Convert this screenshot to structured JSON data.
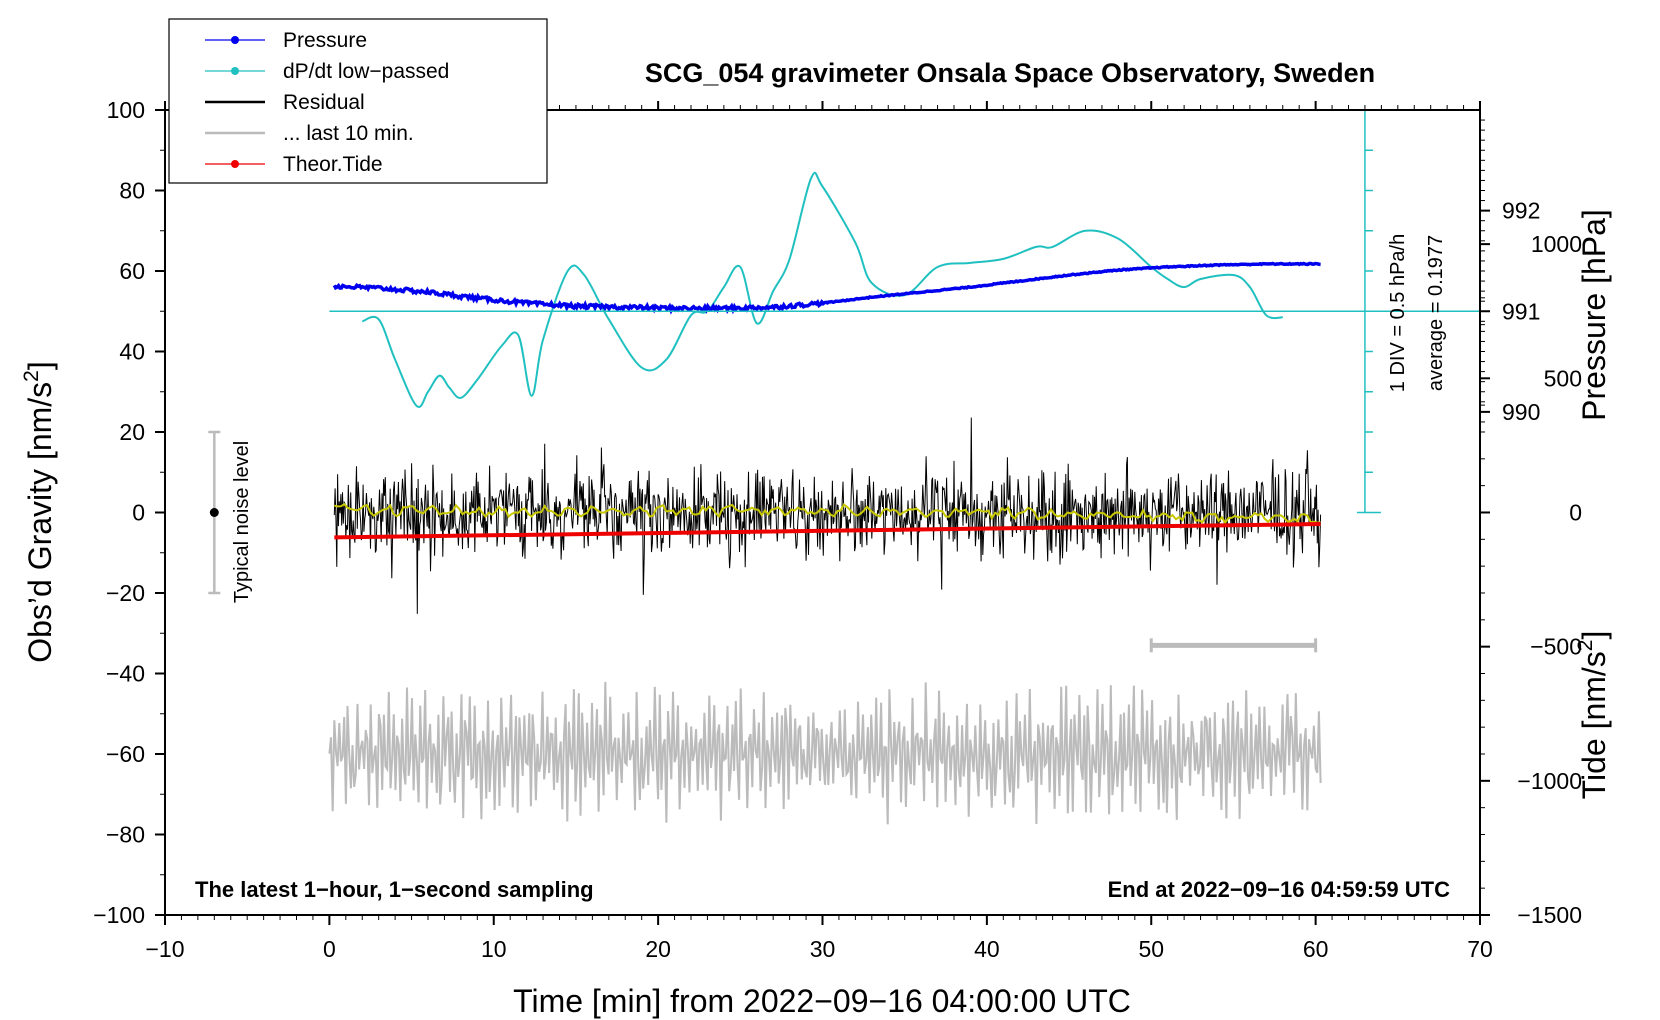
{
  "chart_data": {
    "type": "line",
    "title": "SCG_054 gravimeter Onsala Space Observatory, Sweden",
    "xlabel": "Time [min] from 2022−09−16 04:00:00 UTC",
    "ylabel_left_main": "Obs’d Gravity [nm/s",
    "ylabel_left_sup": "2",
    "ylabel_left_close": "]",
    "ylabel_right_pressure": "Pressure [hPa]",
    "ylabel_right_tide_main": "Tide [nm/s",
    "ylabel_right_tide_sup": "2",
    "ylabel_right_tide_close": "]",
    "xlim": [
      -10,
      70
    ],
    "ylim": [
      -100,
      100
    ],
    "x_ticks": [
      "−10",
      "0",
      "10",
      "20",
      "30",
      "40",
      "50",
      "60",
      "70"
    ],
    "x_tick_values": [
      -10,
      0,
      10,
      20,
      30,
      40,
      50,
      60,
      70
    ],
    "y_ticks": [
      "100",
      "80",
      "60",
      "40",
      "20",
      "0",
      "−20",
      "−40",
      "−60",
      "−80",
      "−100"
    ],
    "y_tick_values": [
      100,
      80,
      60,
      40,
      20,
      0,
      -20,
      -40,
      -60,
      -80,
      -100
    ],
    "pressure_axis": {
      "ticks": [
        "992",
        "991",
        "990"
      ],
      "tick_values": [
        992,
        991,
        990
      ],
      "ref_value": 991,
      "ref_gravity": 50,
      "gravity_per_hpa": 25
    },
    "tide_axis": {
      "ticks": [
        "1000",
        "500",
        "0",
        "−500",
        "−1000",
        "−1500"
      ],
      "tick_values": [
        1000,
        500,
        0,
        -500,
        -1000,
        -1500
      ],
      "ref_value": -1500,
      "ref_gravity": -100,
      "gravity_per_unit": 0.06667
    },
    "legend": {
      "position": "top-left",
      "entries": [
        "Pressure",
        "dP/dt low−passed",
        "Residual",
        "... last 10 min.",
        "Theor.Tide"
      ]
    },
    "series": [
      {
        "name": "Pressure",
        "unit": "hPa",
        "x": [
          0.3,
          3,
          6,
          9,
          12,
          15,
          18,
          21,
          24,
          27,
          30,
          33,
          36,
          39,
          42,
          45,
          48,
          51,
          54,
          57,
          60.3
        ],
        "values": [
          991.25,
          991.23,
          991.19,
          991.13,
          991.08,
          991.05,
          991.04,
          991.03,
          991.03,
          991.04,
          991.08,
          991.14,
          991.19,
          991.24,
          991.3,
          991.36,
          991.41,
          991.44,
          991.46,
          991.47,
          991.47
        ]
      },
      {
        "name": "dP/dt low−passed",
        "plotted_in_gravity_units": true,
        "x": [
          2,
          3,
          4,
          5.3,
          6,
          6.7,
          7.3,
          8,
          9,
          10.5,
          11.5,
          12.3,
          13,
          14.5,
          15.5,
          17,
          19,
          20.5,
          22,
          23,
          24,
          25,
          26,
          27,
          28,
          29.3,
          30,
          32,
          33,
          35,
          37,
          39,
          41,
          43,
          44,
          46,
          48,
          50,
          51,
          52,
          53,
          55,
          56,
          57,
          58
        ],
        "values": [
          47.5,
          48,
          38,
          26.5,
          30,
          34,
          31,
          28.5,
          33,
          41.5,
          44,
          29,
          43,
          60,
          59,
          48,
          36,
          38,
          49,
          50,
          56,
          61,
          47,
          55,
          63,
          83,
          81,
          67,
          57,
          54,
          61,
          62,
          63,
          66,
          66,
          70,
          68,
          61,
          58,
          56,
          58,
          59,
          56,
          49,
          48.5
        ]
      },
      {
        "name": "Residual",
        "x": [
          0.3,
          60.3
        ],
        "values": [
          0,
          0
        ],
        "noise_amplitude": 14
      },
      {
        "name": "Residual smoothed",
        "x": [
          0.3,
          10,
          20,
          30,
          40,
          50,
          60.3
        ],
        "values": [
          1,
          0,
          0.5,
          0.5,
          0,
          -1,
          -1.5
        ]
      },
      {
        "name": "... last 10 min.",
        "x": [
          0,
          60.3
        ],
        "values": [
          -60,
          -60
        ],
        "oscillation_amplitude": 15
      },
      {
        "name": "Theor.Tide",
        "unit": "nm/s2",
        "x": [
          0.3,
          60.3
        ],
        "values": [
          -93,
          -43
        ]
      }
    ],
    "dpdt_scale_bar": {
      "x": 63,
      "y_range": [
        0,
        100
      ],
      "zero_line_gravity": 50,
      "divisions": 10,
      "label_1": "1 DIV = 0.5 hPa/h",
      "label_2": "average = 0.1977"
    },
    "noise_bar": {
      "x": -7,
      "y_range": [
        -20,
        20
      ],
      "label": "Typical noise level"
    },
    "ten_min_bar": {
      "x_range": [
        50,
        60
      ],
      "y": -33
    },
    "footer_left": "The latest 1−hour, 1−second sampling",
    "footer_right": "End at 2022−09−16 04:59:59 UTC"
  },
  "colors": {
    "pressure": "#0000ee",
    "dpdt": "#20c0c0",
    "residual": "#000000",
    "smooth": "#c8c800",
    "last10": "#bbbbbb",
    "tide": "#ee0000"
  }
}
